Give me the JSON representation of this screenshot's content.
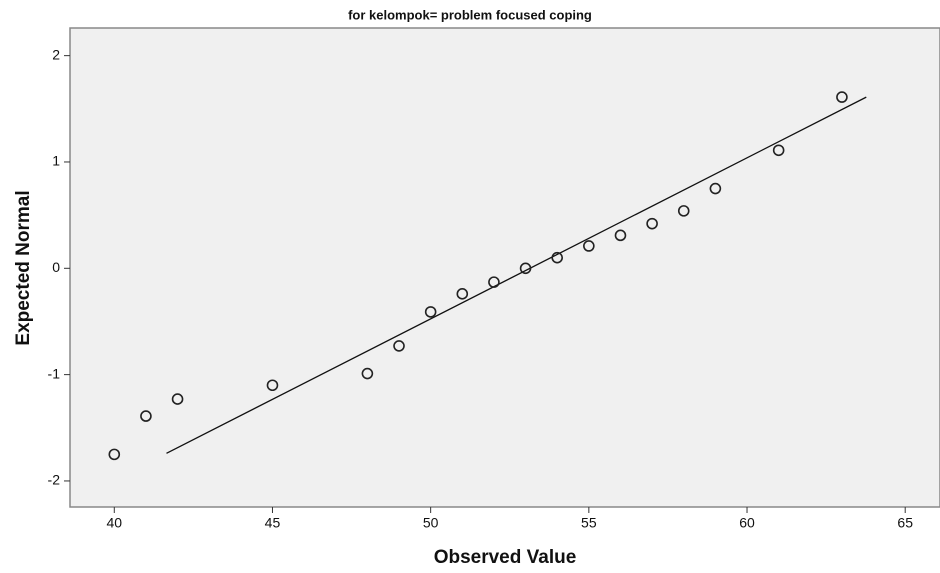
{
  "chart_data": {
    "type": "scatter",
    "title": "for kelompok= problem focused coping",
    "xlabel": "Observed Value",
    "ylabel": "Expected Normal",
    "series": [
      {
        "x": [
          40,
          41,
          42,
          45,
          48,
          49,
          50,
          51,
          52,
          53,
          54,
          55,
          56,
          57,
          58,
          59,
          61,
          63
        ],
        "values": [
          -1.75,
          -1.39,
          -1.23,
          -1.1,
          -0.99,
          -0.73,
          -0.41,
          -0.24,
          -0.13,
          0.0,
          0.1,
          0.21,
          0.31,
          0.42,
          0.54,
          0.75,
          1.11,
          1.61
        ],
        "color": "#222222"
      }
    ],
    "line": {
      "x": [
        41.65,
        63.77
      ],
      "values": [
        -1.74,
        1.61
      ],
      "color": "#111111"
    },
    "xlim": [
      38.6,
      66.1
    ],
    "xticks": [
      40,
      45,
      50,
      55,
      60,
      65
    ],
    "ylim": [
      -2.245,
      2.26
    ],
    "yticks": [
      -2,
      -1,
      0,
      1,
      2
    ],
    "background": "#f0f0f0"
  }
}
